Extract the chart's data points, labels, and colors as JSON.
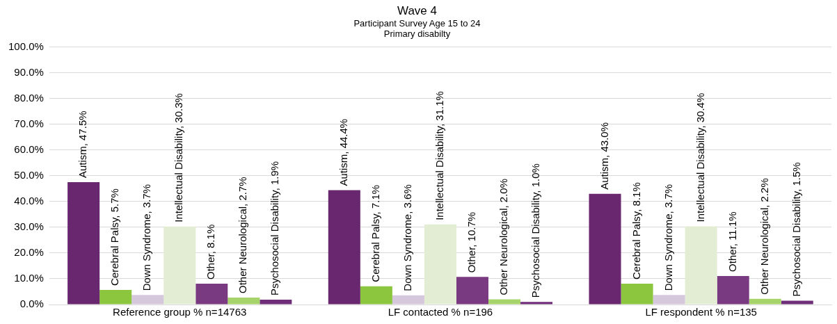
{
  "chart_data": {
    "type": "bar",
    "title": "Wave 4",
    "subtitle": "Participant Survey Age 15 to 24\nPrimary disabilty",
    "categories": [
      "Reference group % n=14763",
      "LF contacted % n=196",
      "LF respondent % n=135"
    ],
    "series": [
      {
        "color": "#68276f",
        "values": [
          47.5,
          44.4,
          43.0
        ],
        "value_labels": [
          "Autism, 47.5%",
          "Autism, 44.4%",
          "Autism, 43.0%"
        ]
      },
      {
        "color": "#8cc63f",
        "values": [
          5.7,
          7.1,
          8.1
        ],
        "value_labels": [
          "Cerebral Palsy, 5.7%",
          "Cerebral Palsy, 7.1%",
          "Cerebral Palsy, 8.1%"
        ]
      },
      {
        "color": "#d6c8dc",
        "values": [
          3.7,
          3.6,
          3.7
        ],
        "value_labels": [
          "Down Syndrome, 3.7%",
          "Down Syndrome, 3.6%",
          "Down Syndrome, 3.7%"
        ]
      },
      {
        "color": "#e3edd3",
        "values": [
          30.3,
          31.1,
          30.4
        ],
        "value_labels": [
          "Intellectual Disability, 30.3%",
          "Intellectual Disability, 31.1%",
          "Intellectual Disability, 30.4%"
        ]
      },
      {
        "color": "#7a3a82",
        "values": [
          8.1,
          10.7,
          11.1
        ],
        "value_labels": [
          "Other, 8.1%",
          "Other, 10.7%",
          "Other, 11.1%"
        ]
      },
      {
        "color": "#a6d46a",
        "values": [
          2.7,
          2.0,
          2.2
        ],
        "value_labels": [
          "Other Neurological, 2.7%",
          "Other Neurological, 2.0%",
          "Other Neurological, 2.2%"
        ]
      },
      {
        "color": "#6f2e78",
        "values": [
          1.9,
          1.0,
          1.5
        ],
        "value_labels": [
          "Psychosocial Disability, 1.9%",
          "Psychosocial Disability, 1.0%",
          "Psychosocial Disability, 1.5%"
        ]
      }
    ],
    "ylim": [
      0,
      100
    ],
    "yticks": [
      {
        "value": 0,
        "label": "0.0%"
      },
      {
        "value": 10,
        "label": "10.0%"
      },
      {
        "value": 20,
        "label": "20.0%"
      },
      {
        "value": 30,
        "label": "30.0%"
      },
      {
        "value": 40,
        "label": "40.0%"
      },
      {
        "value": 50,
        "label": "50.0%"
      },
      {
        "value": 60,
        "label": "60.0%"
      },
      {
        "value": 70,
        "label": "70.0%"
      },
      {
        "value": 80,
        "label": "80.0%"
      },
      {
        "value": 90,
        "label": "90.0%"
      },
      {
        "value": 100,
        "label": "100.0%"
      }
    ],
    "grid": "y",
    "legend": false
  }
}
